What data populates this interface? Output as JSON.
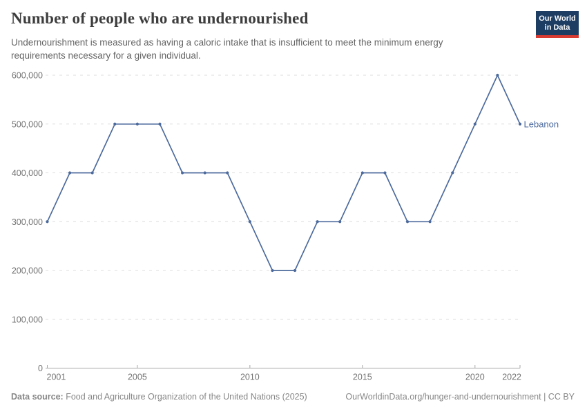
{
  "header": {
    "title": "Number of people who are undernourished",
    "subtitle_line1": "Undernourishment is measured as having a caloric intake that is insufficient to meet the minimum energy",
    "subtitle_line2": "requirements necessary for a given individual.",
    "logo": {
      "line1": "Our World",
      "line2": "in Data"
    }
  },
  "chart_data": {
    "type": "line",
    "title": "Number of people who are undernourished",
    "subtitle": "Undernourishment is measured as having a caloric intake that is insufficient to meet the minimum energy requirements necessary for a given individual.",
    "x": [
      2001,
      2002,
      2003,
      2004,
      2005,
      2006,
      2007,
      2008,
      2009,
      2010,
      2011,
      2012,
      2013,
      2014,
      2015,
      2016,
      2017,
      2018,
      2019,
      2020,
      2021,
      2022
    ],
    "series": [
      {
        "name": "Lebanon",
        "color": "#4c6a9c",
        "values": [
          300000,
          400000,
          400000,
          500000,
          500000,
          500000,
          400000,
          400000,
          400000,
          300000,
          200000,
          200000,
          300000,
          300000,
          400000,
          400000,
          300000,
          300000,
          400000,
          500000,
          600000,
          500000
        ]
      }
    ],
    "xlabel": "",
    "ylabel": "",
    "xlim": [
      2001,
      2022
    ],
    "ylim": [
      0,
      600000
    ],
    "x_ticks": [
      {
        "v": 2001,
        "label": "2001"
      },
      {
        "v": 2005,
        "label": "2005"
      },
      {
        "v": 2010,
        "label": "2010"
      },
      {
        "v": 2015,
        "label": "2015"
      },
      {
        "v": 2020,
        "label": "2020"
      },
      {
        "v": 2022,
        "label": "2022"
      }
    ],
    "y_ticks": [
      {
        "v": 0,
        "label": "0"
      },
      {
        "v": 100000,
        "label": "100,000"
      },
      {
        "v": 200000,
        "label": "200,000"
      },
      {
        "v": 300000,
        "label": "300,000"
      },
      {
        "v": 400000,
        "label": "400,000"
      },
      {
        "v": 500000,
        "label": "500,000"
      },
      {
        "v": 600000,
        "label": "600,000"
      }
    ],
    "grid": "horizontal-dashed",
    "legend": "end-of-line-label"
  },
  "footer": {
    "source_label": "Data source:",
    "source_text": " Food and Agriculture Organization of the United Nations (2025)",
    "credit": "OurWorldinData.org/hunger-and-undernourishment | CC BY"
  },
  "colors": {
    "line": "#4c6a9c",
    "gridline": "#dcdcdc",
    "axis": "#a6a6a6",
    "tick_label": "#737373",
    "logo_bg": "#1d3d63",
    "logo_stripe": "#d93a32"
  }
}
